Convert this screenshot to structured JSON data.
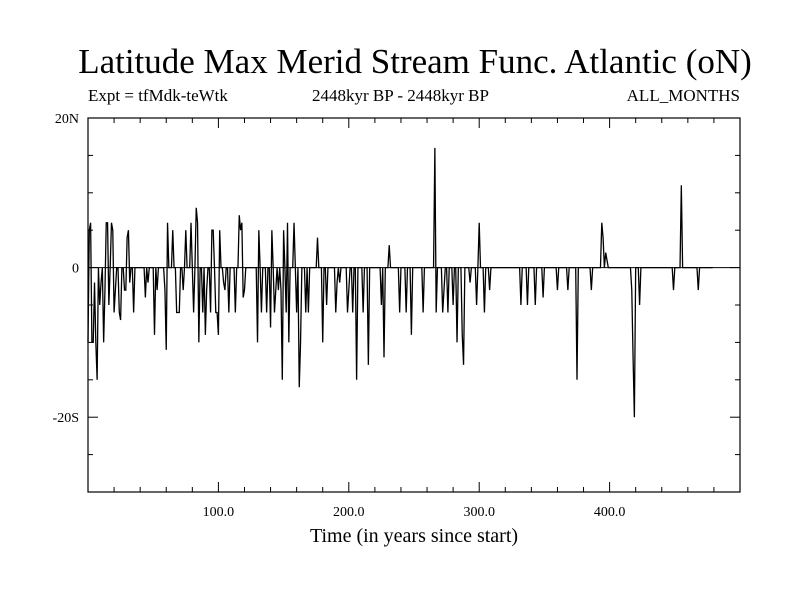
{
  "header": {
    "title": "Latitude Max Merid Stream Func. Atlantic (oN)",
    "expt": "Expt = tfMdk-teWtk",
    "period": "2448kyr BP - 2448kyr BP",
    "months": "ALL_MONTHS"
  },
  "chart_data": {
    "type": "line",
    "title": "Latitude Max Merid Stream Func. Atlantic (oN)",
    "xlabel": "Time (in years since start)",
    "ylabel": "",
    "xlim": [
      0,
      500
    ],
    "ylim": [
      -30,
      20
    ],
    "x_ticks": [
      {
        "value": 100,
        "label": "100.0"
      },
      {
        "value": 200,
        "label": "200.0"
      },
      {
        "value": 300,
        "label": "300.0"
      },
      {
        "value": 400,
        "label": "400.0"
      }
    ],
    "y_ticks": [
      {
        "value": 20,
        "label": "20N"
      },
      {
        "value": 0,
        "label": "0"
      },
      {
        "value": -20,
        "label": "-20S"
      }
    ],
    "grid": false,
    "line_color": "#000000",
    "series": [
      {
        "x_start": 0,
        "x_step": 1,
        "values": [
          -10,
          5,
          6,
          -10,
          -10,
          -2,
          -10,
          -15,
          0,
          -5,
          -2,
          0,
          -10,
          -3,
          6,
          6,
          -5,
          0,
          6,
          5,
          -6,
          -3,
          0,
          0,
          -6,
          -7,
          0,
          0,
          -3,
          -3,
          4,
          5,
          -2,
          0,
          0,
          -6,
          0,
          0,
          0,
          0,
          0,
          0,
          0,
          0,
          -4,
          0,
          -2,
          0,
          0,
          0,
          0,
          -9,
          0,
          -3,
          0,
          0,
          0,
          0,
          0,
          -3,
          -11,
          6,
          0,
          0,
          0,
          5,
          0,
          0,
          -6,
          -6,
          -6,
          0,
          0,
          -3,
          0,
          5,
          0,
          0,
          0,
          6,
          0,
          -6,
          0,
          8,
          6,
          -10,
          0,
          0,
          -6,
          0,
          -9,
          -3,
          0,
          0,
          -6,
          5,
          5,
          0,
          -6,
          -6,
          -9,
          5,
          0,
          0,
          -2,
          -3,
          0,
          0,
          -6,
          0,
          0,
          0,
          0,
          -6,
          0,
          0,
          7,
          5,
          6,
          -4,
          -3,
          0,
          0,
          0,
          0,
          0,
          0,
          0,
          0,
          0,
          -10,
          5,
          0,
          -6,
          0,
          0,
          0,
          -6,
          0,
          0,
          -8,
          5,
          0,
          -6,
          -3,
          0,
          -3,
          0,
          -3,
          -15,
          5,
          0,
          -6,
          6,
          -10,
          0,
          0,
          0,
          6,
          0,
          -6,
          0,
          -16,
          -10,
          0,
          0,
          0,
          -6,
          0,
          -6,
          0,
          0,
          0,
          0,
          0,
          0,
          4,
          0,
          0,
          0,
          -10,
          0,
          0,
          -5,
          0,
          0,
          0,
          0,
          0,
          0,
          -6,
          -2,
          0,
          -2,
          0,
          0,
          0,
          0,
          0,
          -6,
          -3,
          0,
          0,
          -6,
          0,
          0,
          -15,
          0,
          0,
          0,
          0,
          -6,
          0,
          0,
          0,
          -13,
          0,
          0,
          0,
          0,
          0,
          0,
          0,
          0,
          0,
          -5,
          0,
          -12,
          0,
          0,
          0,
          3,
          0,
          0,
          0,
          0,
          0,
          0,
          0,
          -6,
          0,
          0,
          0,
          0,
          -6,
          0,
          0,
          0,
          -9,
          0,
          0,
          0,
          0,
          0,
          0,
          0,
          0,
          -6,
          0,
          0,
          0,
          0,
          0,
          0,
          0,
          0,
          16,
          -6,
          0,
          0,
          0,
          0,
          -6,
          -3,
          0,
          0,
          -6,
          0,
          0,
          0,
          -5,
          0,
          0,
          -10,
          0,
          0,
          0,
          -9,
          -13,
          0,
          0,
          0,
          0,
          -2,
          0,
          0,
          0,
          0,
          -5,
          0,
          6,
          0,
          0,
          0,
          -6,
          0,
          0,
          0,
          -3,
          0,
          0,
          0,
          0,
          0,
          0,
          0,
          0,
          0,
          0,
          0,
          0,
          0,
          0,
          0,
          0,
          0,
          0,
          0,
          0,
          0,
          0,
          0,
          -5,
          0,
          0,
          0,
          0,
          -5,
          0,
          0,
          0,
          0,
          0,
          -5,
          0,
          0,
          0,
          0,
          0,
          -4,
          0,
          0,
          0,
          0,
          0,
          0,
          0,
          0,
          0,
          0,
          -3,
          0,
          0,
          0,
          0,
          0,
          0,
          0,
          -3,
          0,
          0,
          0,
          0,
          0,
          0,
          -15,
          0,
          0,
          0,
          0,
          0,
          0,
          0,
          0,
          0,
          0,
          -3,
          0,
          0,
          0,
          0,
          0,
          0,
          0,
          6,
          4,
          0,
          2,
          1,
          0,
          0,
          0,
          0,
          0,
          0,
          0,
          0,
          0,
          0,
          0,
          0,
          0,
          0,
          0,
          0,
          0,
          0,
          -3,
          -12,
          -20,
          0,
          0,
          0,
          -5,
          0,
          0,
          0,
          0,
          0,
          0,
          0,
          0,
          0,
          0,
          0,
          0,
          0,
          0,
          0,
          0,
          0,
          0,
          0,
          0,
          0,
          0,
          0,
          0,
          0,
          -3,
          0,
          0,
          0,
          0,
          0,
          11,
          0,
          0,
          0,
          0,
          0,
          0,
          0,
          0,
          0,
          0,
          0,
          0,
          -3,
          0,
          0,
          0,
          0,
          0,
          0,
          0,
          0,
          0,
          0,
          0
        ]
      }
    ]
  }
}
